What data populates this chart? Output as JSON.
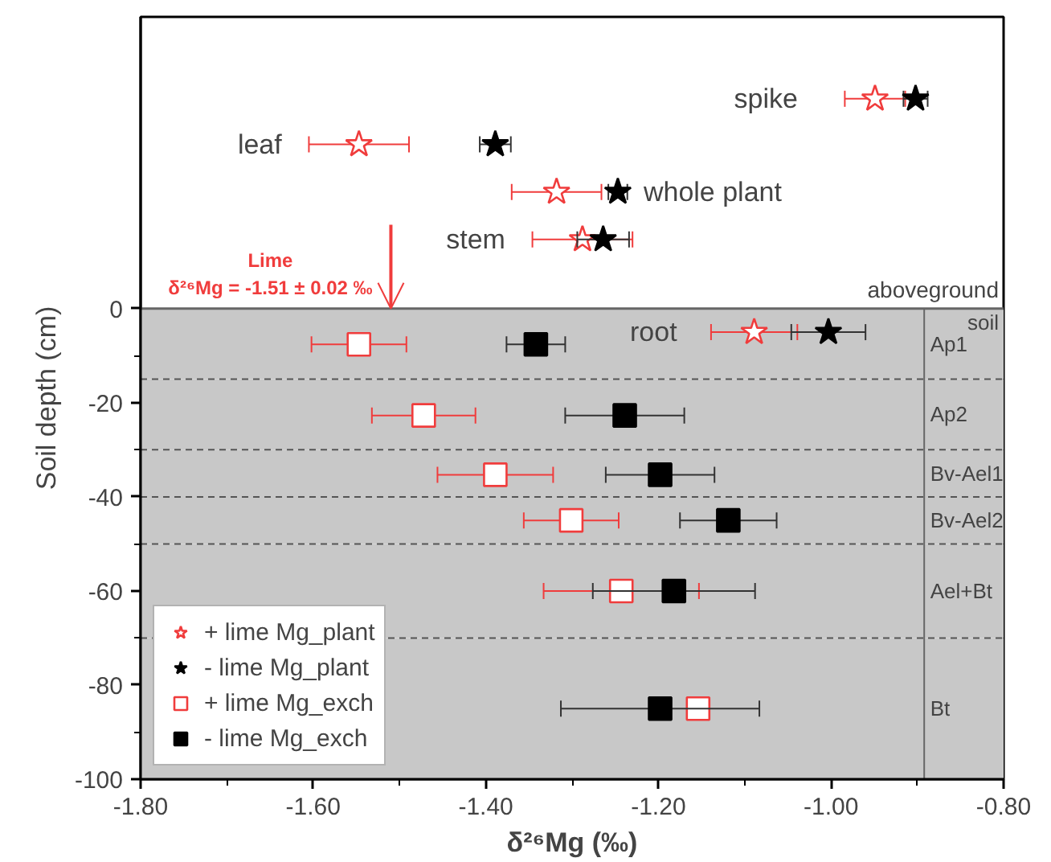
{
  "chart_data": {
    "type": "scatter",
    "xlabel": "δ²⁶Mg (‰)",
    "ylabel": "Soil depth (cm)",
    "xlim": [
      -1.8,
      -0.8
    ],
    "ylim": [
      -100,
      62
    ],
    "xticks": [
      {
        "value": -1.8,
        "label": "-1.80"
      },
      {
        "value": -1.6,
        "label": "-1.60"
      },
      {
        "value": -1.4,
        "label": "-1.40"
      },
      {
        "value": -1.2,
        "label": "-1.20"
      },
      {
        "value": -1.0,
        "label": "-1.00"
      },
      {
        "value": -0.8,
        "label": "-0.80"
      }
    ],
    "yticks": [
      -100,
      -80,
      -60,
      -40,
      -20,
      0
    ],
    "grid": false,
    "legend": "bottom left",
    "series": [
      {
        "name": "+ lime Mg_plant",
        "color": "#f03c3c",
        "marker": "star",
        "x": [
          -0.949,
          -1.547,
          -1.318,
          -1.288,
          -1.089
        ],
        "values": [
          44.6,
          34.9,
          24.8,
          14.7,
          -5
        ],
        "xerrors": [
          0.035,
          0.058,
          0.052,
          0.058,
          0.05
        ]
      },
      {
        "name": "- lime Mg_plant",
        "color": "#000000",
        "marker": "star",
        "x": [
          -0.902,
          -1.389,
          -1.247,
          -1.264,
          -1.003
        ],
        "values": [
          44.6,
          34.9,
          24.8,
          14.7,
          -5
        ],
        "xerrors": [
          0.014,
          0.018,
          0.011,
          0.03,
          0.043
        ]
      },
      {
        "name": "+ lime Mg_exch",
        "color": "#f03c3c",
        "marker": "square",
        "x": [
          -1.547,
          -1.472,
          -1.389,
          -1.301,
          -1.243,
          -1.154
        ],
        "values": [
          -7.6,
          -22.7,
          -35.3,
          -45,
          -60,
          -85
        ],
        "xerrors": [
          0.055,
          0.06,
          0.067,
          0.055,
          0.09,
          null
        ]
      },
      {
        "name": "- lime Mg_exch",
        "color": "#000000",
        "marker": "square",
        "x": [
          -1.342,
          -1.239,
          -1.198,
          -1.119,
          -1.182,
          -1.198
        ],
        "values": [
          -7.6,
          -22.7,
          -35.3,
          -45,
          -60,
          -85
        ],
        "xerrors": [
          0.034,
          0.069,
          0.063,
          0.056,
          0.094,
          0.115
        ]
      }
    ],
    "bands": [
      {
        "axis": "y",
        "from": 0,
        "to": -15,
        "label": "Ap1",
        "color": "#c8c8c8"
      },
      {
        "axis": "y",
        "from": -15,
        "to": -30,
        "label": "Ap2",
        "color": "#c8c8c8"
      },
      {
        "axis": "y",
        "from": -30,
        "to": -40,
        "label": "Bv-Ael1",
        "color": "#c8c8c8"
      },
      {
        "axis": "y",
        "from": -40,
        "to": -50,
        "label": "Bv-Ael2",
        "color": "#c8c8c8"
      },
      {
        "axis": "y",
        "from": -50,
        "to": -70,
        "label": "Ael+Bt",
        "color": "#c8c8c8"
      },
      {
        "axis": "y",
        "from": -70,
        "to": -100,
        "label": "Bt",
        "color": "#c8c8c8"
      }
    ],
    "annotations": [
      "spike",
      "leaf",
      "whole plant",
      "stem",
      "root",
      "aboveground",
      "soil",
      {
        "text": "Lime\nδ²⁶Mg = -1.51 ± 0.02 ‰",
        "x": -1.51,
        "y": 0
      }
    ]
  }
}
